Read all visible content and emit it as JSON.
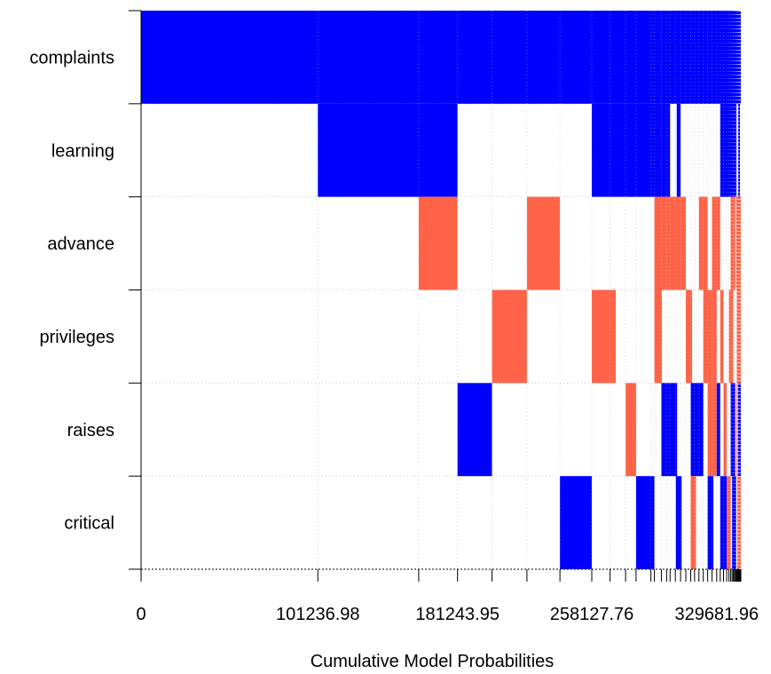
{
  "chart_data": {
    "type": "heatmap",
    "title": "",
    "xlabel": "Cumulative Model Probabilities",
    "ylabel": "",
    "xlim": [
      0,
      343500
    ],
    "rows": [
      "complaints",
      "learning",
      "advance",
      "privileges",
      "raises",
      "critical"
    ],
    "x_tick_labels": [
      "0",
      "101236.98",
      "181243.95",
      "258127.76",
      "329681.96"
    ],
    "x_tick_values": [
      0,
      101236.98,
      181243.95,
      258127.76,
      329681.96
    ],
    "boundaries": [
      0,
      101236.98,
      159000,
      181243.95,
      201000,
      221000,
      239900,
      258127.76,
      268600,
      277500,
      283500,
      292000,
      294000,
      298000,
      301000,
      303000,
      306000,
      309000,
      312000,
      314800,
      317000,
      319500,
      322000,
      324500,
      327000,
      329681.96,
      331700,
      333600,
      335400,
      336700,
      337700,
      338500,
      339200,
      339800,
      340300,
      340800,
      341200,
      341500,
      341800,
      342050,
      342300,
      342500,
      342700,
      342900,
      343050,
      343200,
      343350,
      343500
    ],
    "positive_color": "#0000ff",
    "negative_color": "#ff6347",
    "cells": [
      {
        "row": "complaints",
        "x0": 0,
        "x1": 343500,
        "sign": 1
      },
      {
        "row": "learning",
        "x0": 101236.98,
        "x1": 181243.95,
        "sign": 1
      },
      {
        "row": "learning",
        "x0": 258127.76,
        "x1": 303000,
        "sign": 1
      },
      {
        "row": "learning",
        "x0": 306800,
        "x1": 309000,
        "sign": 1
      },
      {
        "row": "learning",
        "x0": 331700,
        "x1": 341000,
        "sign": 1
      },
      {
        "row": "learning",
        "x0": 342000,
        "x1": 343000,
        "sign": 1
      },
      {
        "row": "advance",
        "x0": 159000,
        "x1": 181243.95,
        "sign": -1
      },
      {
        "row": "advance",
        "x0": 221000,
        "x1": 239900,
        "sign": -1
      },
      {
        "row": "advance",
        "x0": 294000,
        "x1": 312000,
        "sign": -1
      },
      {
        "row": "advance",
        "x0": 319500,
        "x1": 324500,
        "sign": -1
      },
      {
        "row": "advance",
        "x0": 327000,
        "x1": 331700,
        "sign": -1
      },
      {
        "row": "advance",
        "x0": 337700,
        "x1": 340300,
        "sign": -1
      },
      {
        "row": "advance",
        "x0": 340800,
        "x1": 343500,
        "sign": -1
      },
      {
        "row": "privileges",
        "x0": 201000,
        "x1": 221000,
        "sign": -1
      },
      {
        "row": "privileges",
        "x0": 258127.76,
        "x1": 271900,
        "sign": -1
      },
      {
        "row": "privileges",
        "x0": 294000,
        "x1": 298300,
        "sign": -1
      },
      {
        "row": "privileges",
        "x0": 312000,
        "x1": 315600,
        "sign": -1
      },
      {
        "row": "privileges",
        "x0": 322000,
        "x1": 329681.96,
        "sign": -1
      },
      {
        "row": "privileges",
        "x0": 331700,
        "x1": 333600,
        "sign": -1
      },
      {
        "row": "privileges",
        "x0": 336700,
        "x1": 339200,
        "sign": -1
      },
      {
        "row": "privileges",
        "x0": 341200,
        "x1": 343500,
        "sign": -1
      },
      {
        "row": "raises",
        "x0": 181243.95,
        "x1": 201000,
        "sign": 1
      },
      {
        "row": "raises",
        "x0": 277500,
        "x1": 283500,
        "sign": -1
      },
      {
        "row": "raises",
        "x0": 298000,
        "x1": 307000,
        "sign": 1
      },
      {
        "row": "raises",
        "x0": 314800,
        "x1": 322000,
        "sign": 1
      },
      {
        "row": "raises",
        "x0": 324500,
        "x1": 329681.96,
        "sign": -1
      },
      {
        "row": "raises",
        "x0": 329681.96,
        "x1": 331700,
        "sign": 1
      },
      {
        "row": "raises",
        "x0": 333600,
        "x1": 335400,
        "sign": -1
      },
      {
        "row": "raises",
        "x0": 337700,
        "x1": 340300,
        "sign": 1
      },
      {
        "row": "raises",
        "x0": 341000,
        "x1": 341800,
        "sign": -1
      },
      {
        "row": "raises",
        "x0": 342000,
        "x1": 343500,
        "sign": 1
      },
      {
        "row": "critical",
        "x0": 239900,
        "x1": 258127.76,
        "sign": 1
      },
      {
        "row": "critical",
        "x0": 283500,
        "x1": 294000,
        "sign": 1
      },
      {
        "row": "critical",
        "x0": 306300,
        "x1": 309600,
        "sign": 1
      },
      {
        "row": "critical",
        "x0": 314800,
        "x1": 317800,
        "sign": -1
      },
      {
        "row": "critical",
        "x0": 324500,
        "x1": 327800,
        "sign": 1
      },
      {
        "row": "critical",
        "x0": 331700,
        "x1": 335400,
        "sign": 1
      },
      {
        "row": "critical",
        "x0": 335400,
        "x1": 337700,
        "sign": -1
      },
      {
        "row": "critical",
        "x0": 338500,
        "x1": 340800,
        "sign": 1
      },
      {
        "row": "critical",
        "x0": 341500,
        "x1": 343500,
        "sign": -1
      }
    ],
    "grid": true,
    "legend": "none"
  }
}
